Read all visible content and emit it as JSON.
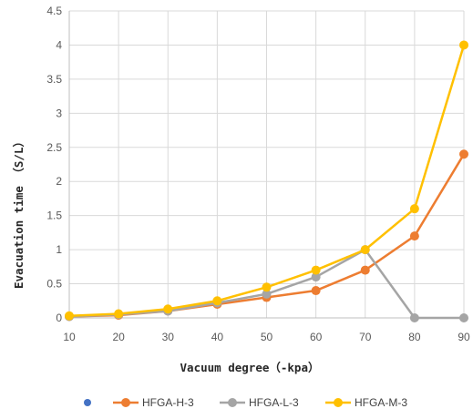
{
  "chart_data": {
    "type": "line",
    "xlabel": "Vacuum degree（-kpa）",
    "ylabel": "Evacuation time （S/L）",
    "x": [
      10,
      20,
      30,
      40,
      50,
      60,
      70,
      80,
      90
    ],
    "xlim": [
      10,
      90
    ],
    "ylim": [
      0,
      4.5
    ],
    "x_ticks": [
      "10",
      "20",
      "30",
      "40",
      "50",
      "60",
      "70",
      "80",
      "90"
    ],
    "y_ticks": [
      "0",
      "0.5",
      "1",
      "1.5",
      "2",
      "2.5",
      "3",
      "3.5",
      "4",
      "4.5"
    ],
    "grid": true,
    "legend_position": "bottom",
    "legend_extra_marker_color": "#4472C4",
    "series": [
      {
        "name": "HFGA-H-3",
        "color": "#ED7D31",
        "values": [
          0.02,
          0.04,
          0.1,
          0.2,
          0.3,
          0.4,
          0.7,
          1.2,
          2.4
        ]
      },
      {
        "name": "HFGA-L-3",
        "color": "#A5A5A5",
        "values": [
          0.02,
          0.05,
          0.1,
          0.22,
          0.35,
          0.6,
          1.0,
          0.0,
          0.0
        ]
      },
      {
        "name": "HFGA-M-3",
        "color": "#FFC000",
        "values": [
          0.03,
          0.06,
          0.13,
          0.25,
          0.45,
          0.7,
          1.0,
          1.6,
          4.0
        ]
      }
    ]
  }
}
